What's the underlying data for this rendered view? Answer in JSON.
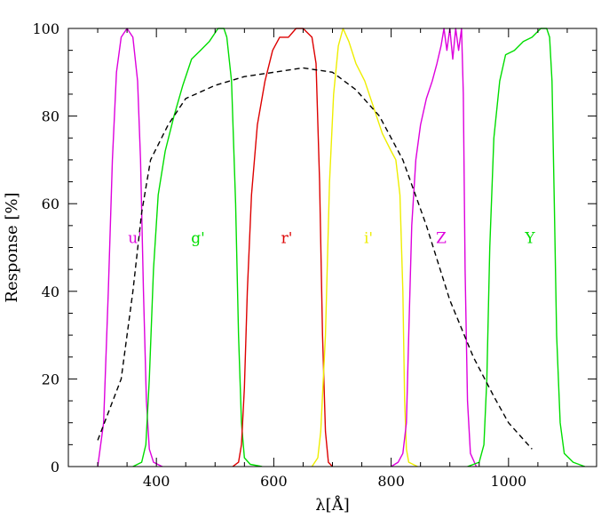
{
  "chart_data": {
    "type": "line",
    "title": "",
    "xlabel": "λ[Å]",
    "ylabel": "Response [%]",
    "xlim": [
      250,
      1150
    ],
    "ylim": [
      0,
      100
    ],
    "xticks": [
      400,
      600,
      800,
      1000
    ],
    "yticks": [
      0,
      20,
      40,
      60,
      80,
      100
    ],
    "grid": false,
    "series": [
      {
        "name": "u'",
        "color": "#dd00dd",
        "label_at": [
          345,
          51
        ],
        "points": [
          [
            300,
            0
          ],
          [
            310,
            10
          ],
          [
            318,
            40
          ],
          [
            325,
            70
          ],
          [
            332,
            90
          ],
          [
            340,
            98
          ],
          [
            350,
            100
          ],
          [
            360,
            98
          ],
          [
            368,
            88
          ],
          [
            373,
            70
          ],
          [
            378,
            40
          ],
          [
            383,
            15
          ],
          [
            388,
            4
          ],
          [
            395,
            1
          ],
          [
            410,
            0
          ]
        ]
      },
      {
        "name": "g'",
        "color": "#00dd00",
        "label_at": [
          445,
          51
        ],
        "points": [
          [
            360,
            0
          ],
          [
            375,
            1
          ],
          [
            382,
            5
          ],
          [
            388,
            20
          ],
          [
            395,
            45
          ],
          [
            403,
            62
          ],
          [
            415,
            72
          ],
          [
            430,
            80
          ],
          [
            445,
            87
          ],
          [
            460,
            93
          ],
          [
            475,
            95
          ],
          [
            490,
            97
          ],
          [
            505,
            100
          ],
          [
            515,
            100
          ],
          [
            520,
            98
          ],
          [
            528,
            88
          ],
          [
            535,
            60
          ],
          [
            540,
            30
          ],
          [
            545,
            10
          ],
          [
            550,
            2
          ],
          [
            560,
            0.5
          ],
          [
            580,
            0
          ]
        ]
      },
      {
        "name": "r'",
        "color": "#dd0000",
        "label_at": [
          645,
          51
        ],
        "points": [
          [
            530,
            0
          ],
          [
            540,
            1
          ],
          [
            545,
            5
          ],
          [
            550,
            18
          ],
          [
            555,
            40
          ],
          [
            562,
            62
          ],
          [
            572,
            78
          ],
          [
            585,
            88
          ],
          [
            598,
            95
          ],
          [
            610,
            98
          ],
          [
            625,
            98
          ],
          [
            638,
            100
          ],
          [
            650,
            100
          ],
          [
            665,
            98
          ],
          [
            672,
            92
          ],
          [
            678,
            65
          ],
          [
            683,
            30
          ],
          [
            688,
            8
          ],
          [
            693,
            1
          ],
          [
            700,
            0
          ]
        ]
      },
      {
        "name": "i'",
        "color": "#eeee00",
        "label_at": [
          845,
          51
        ],
        "points": [
          [
            665,
            0
          ],
          [
            675,
            2
          ],
          [
            680,
            8
          ],
          [
            688,
            30
          ],
          [
            695,
            65
          ],
          [
            702,
            85
          ],
          [
            710,
            96
          ],
          [
            718,
            100
          ],
          [
            728,
            97
          ],
          [
            740,
            92
          ],
          [
            755,
            88
          ],
          [
            770,
            82
          ],
          [
            785,
            76
          ],
          [
            800,
            72
          ],
          [
            808,
            70
          ],
          [
            815,
            62
          ],
          [
            820,
            40
          ],
          [
            823,
            15
          ],
          [
            826,
            4
          ],
          [
            830,
            1
          ],
          [
            845,
            0
          ]
        ]
      },
      {
        "name": "Z",
        "color": "#dd00dd",
        "label_at": [
          1045,
          51
        ],
        "points": [
          [
            800,
            0
          ],
          [
            812,
            1
          ],
          [
            820,
            3
          ],
          [
            826,
            10
          ],
          [
            830,
            30
          ],
          [
            835,
            55
          ],
          [
            842,
            70
          ],
          [
            850,
            78
          ],
          [
            860,
            84
          ],
          [
            870,
            88
          ],
          [
            878,
            92
          ],
          [
            885,
            96
          ],
          [
            890,
            100
          ],
          [
            895,
            95
          ],
          [
            900,
            100
          ],
          [
            905,
            93
          ],
          [
            910,
            100
          ],
          [
            915,
            95
          ],
          [
            920,
            100
          ],
          [
            923,
            85
          ],
          [
            926,
            45
          ],
          [
            930,
            15
          ],
          [
            935,
            3
          ],
          [
            945,
            0
          ]
        ]
      },
      {
        "name": "Y",
        "color": "#00dd00",
        "label_at": [
          1250,
          51
        ],
        "points": [
          [
            930,
            0
          ],
          [
            950,
            1
          ],
          [
            958,
            5
          ],
          [
            963,
            20
          ],
          [
            968,
            50
          ],
          [
            975,
            75
          ],
          [
            985,
            88
          ],
          [
            995,
            94
          ],
          [
            1010,
            95
          ],
          [
            1025,
            97
          ],
          [
            1040,
            98
          ],
          [
            1055,
            100
          ],
          [
            1065,
            100
          ],
          [
            1070,
            98
          ],
          [
            1074,
            88
          ],
          [
            1078,
            60
          ],
          [
            1082,
            30
          ],
          [
            1088,
            10
          ],
          [
            1095,
            3
          ],
          [
            1110,
            1
          ],
          [
            1130,
            0
          ]
        ]
      },
      {
        "name": "",
        "color": "#000000",
        "dash": "6,4",
        "points": [
          [
            300,
            6
          ],
          [
            340,
            20
          ],
          [
            360,
            40
          ],
          [
            375,
            58
          ],
          [
            390,
            70
          ],
          [
            420,
            78
          ],
          [
            450,
            84
          ],
          [
            500,
            87
          ],
          [
            550,
            89
          ],
          [
            600,
            90
          ],
          [
            650,
            91
          ],
          [
            700,
            90
          ],
          [
            740,
            86
          ],
          [
            780,
            80
          ],
          [
            820,
            70
          ],
          [
            860,
            55
          ],
          [
            900,
            38
          ],
          [
            940,
            25
          ],
          [
            975,
            16
          ],
          [
            1000,
            10
          ],
          [
            1040,
            4
          ]
        ]
      }
    ]
  }
}
